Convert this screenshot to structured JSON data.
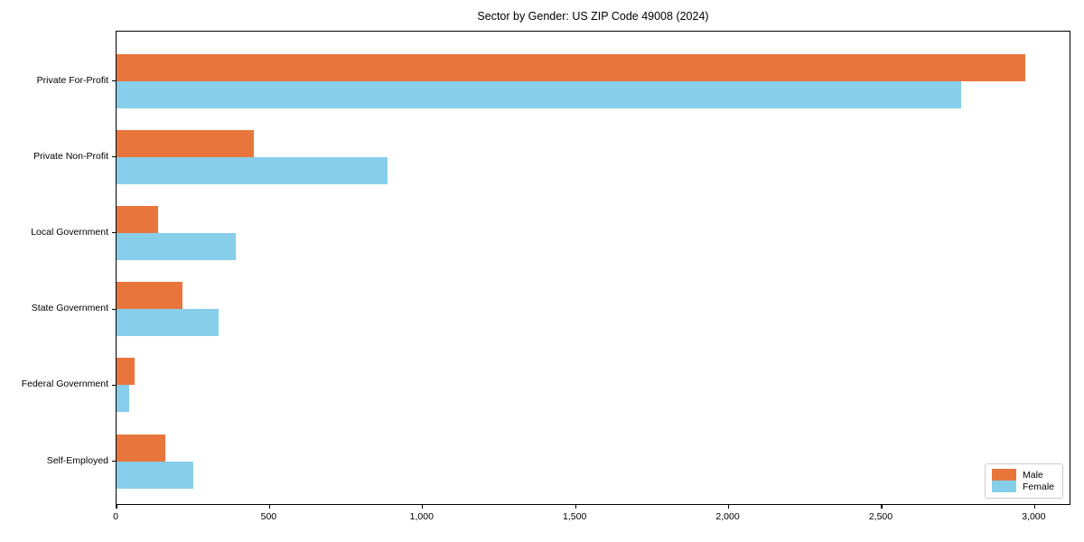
{
  "title": "Sector by Gender: US ZIP Code 49008 (2024)",
  "chart_data": {
    "type": "bar",
    "orientation": "horizontal",
    "title": "Sector by Gender: US ZIP Code 49008 (2024)",
    "categories": [
      "Private For-Profit",
      "Private Non-Profit",
      "Local Government",
      "State Government",
      "Federal Government",
      "Self-Employed"
    ],
    "series": [
      {
        "name": "Male",
        "color": "#e8763c",
        "values": [
          2970,
          450,
          135,
          215,
          60,
          160
        ]
      },
      {
        "name": "Female",
        "color": "#87ceeb",
        "values": [
          2760,
          885,
          390,
          335,
          40,
          250
        ]
      }
    ],
    "xlabel": "",
    "ylabel": "",
    "xlim": [
      0,
      3120
    ],
    "xticks": [
      0,
      500,
      1000,
      1500,
      2000,
      2500,
      3000
    ],
    "xtick_labels": [
      "0",
      "500",
      "1,000",
      "1,500",
      "2,000",
      "2,500",
      "3,000"
    ],
    "grid": false,
    "legend_position": "lower right"
  },
  "colors": {
    "background": "#ffffff",
    "frame": "#000000",
    "male": "#e8763c",
    "female": "#87ceeb",
    "legend_border": "#cccccc",
    "text": "#000000"
  }
}
